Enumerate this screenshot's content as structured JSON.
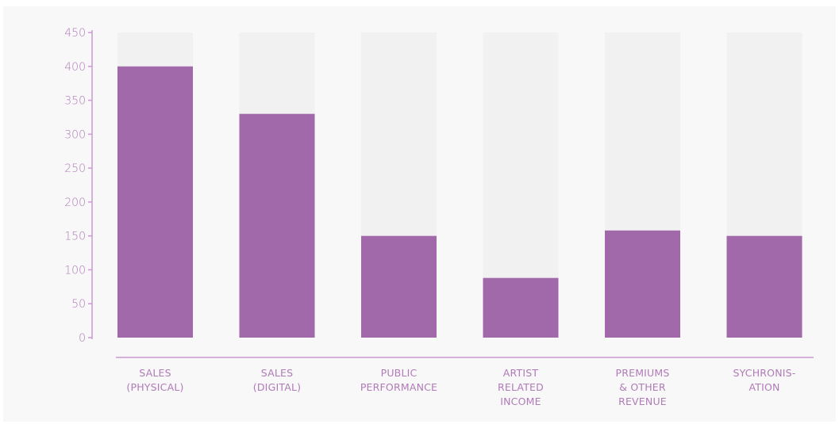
{
  "chart_data": {
    "type": "bar",
    "categories": [
      [
        "SALES",
        "(PHYSICAL)"
      ],
      [
        "SALES",
        "(DIGITAL)"
      ],
      [
        "PUBLIC",
        "PERFORMANCE"
      ],
      [
        "ARTIST",
        "RELATED",
        "INCOME"
      ],
      [
        "PREMIUMS",
        "& OTHER",
        "REVENUE"
      ],
      [
        "SYCHRONIS-",
        "ATION"
      ]
    ],
    "values": [
      400,
      330,
      150,
      88,
      158,
      150
    ],
    "background_max": 450,
    "ylim": [
      0,
      450
    ],
    "yticks": [
      "0",
      "50",
      "100",
      "150",
      "200",
      "250",
      "300",
      "350",
      "400",
      "450"
    ],
    "grid": false,
    "colors": {
      "bar": "#a169aa",
      "track": "#f1f1f1",
      "axis": "#c99bd0",
      "text": "#b07ab8",
      "panel": "#f8f8f8"
    }
  }
}
